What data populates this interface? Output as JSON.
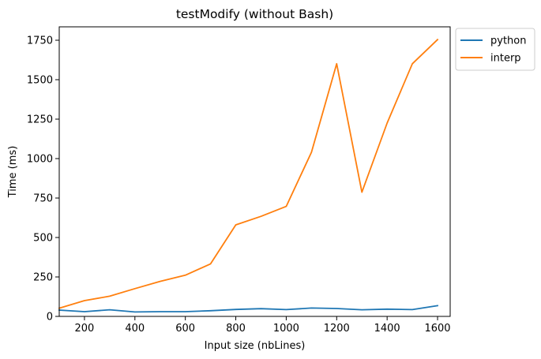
{
  "chart_data": {
    "type": "line",
    "title": "testModify (without Bash)",
    "xlabel": "Input size (nbLines)",
    "ylabel": "Time (ms)",
    "xlim": [
      100,
      1650
    ],
    "ylim": [
      0,
      1835
    ],
    "xticks": [
      200,
      400,
      600,
      800,
      1000,
      1200,
      1400,
      1600
    ],
    "yticks": [
      0,
      250,
      500,
      750,
      1000,
      1250,
      1500,
      1750
    ],
    "x": [
      100,
      200,
      300,
      400,
      500,
      600,
      700,
      800,
      900,
      1000,
      1100,
      1200,
      1300,
      1400,
      1500,
      1600
    ],
    "series": [
      {
        "name": "python",
        "color": "#1f77b4",
        "values": [
          40,
          30,
          42,
          28,
          30,
          30,
          36,
          44,
          49,
          43,
          53,
          50,
          42,
          46,
          43,
          68
        ]
      },
      {
        "name": "interp",
        "color": "#ff7f0e",
        "values": [
          52,
          100,
          128,
          176,
          222,
          261,
          333,
          580,
          634,
          697,
          1040,
          1601,
          787,
          1225,
          1601,
          1754
        ]
      }
    ],
    "legend": "outside-top-right",
    "grid": false
  }
}
